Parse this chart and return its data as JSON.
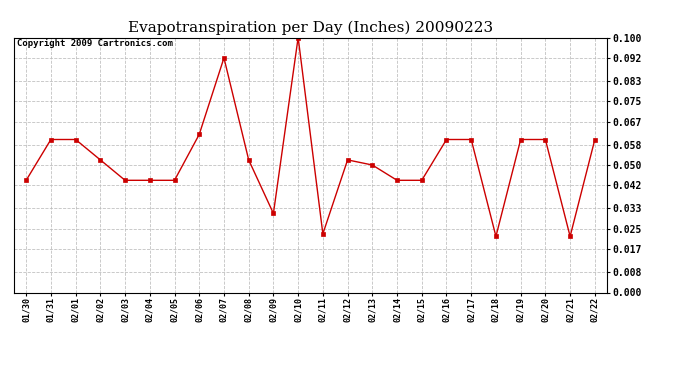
{
  "title": "Evapotranspiration per Day (Inches) 20090223",
  "copyright_text": "Copyright 2009 Cartronics.com",
  "dates": [
    "01/30",
    "01/31",
    "02/01",
    "02/02",
    "02/03",
    "02/04",
    "02/05",
    "02/06",
    "02/07",
    "02/08",
    "02/09",
    "02/10",
    "02/11",
    "02/12",
    "02/13",
    "02/14",
    "02/15",
    "02/16",
    "02/17",
    "02/18",
    "02/19",
    "02/20",
    "02/21",
    "02/22"
  ],
  "values": [
    0.044,
    0.06,
    0.06,
    0.052,
    0.044,
    0.044,
    0.044,
    0.062,
    0.092,
    0.052,
    0.031,
    0.1,
    0.023,
    0.052,
    0.05,
    0.044,
    0.044,
    0.06,
    0.06,
    0.022,
    0.06,
    0.06,
    0.022,
    0.06
  ],
  "line_color": "#cc0000",
  "marker": "s",
  "marker_size": 2.5,
  "background_color": "#ffffff",
  "plot_bg_color": "#ffffff",
  "grid_color": "#bbbbbb",
  "ylim": [
    0.0,
    0.1
  ],
  "yticks": [
    0.0,
    0.008,
    0.017,
    0.025,
    0.033,
    0.042,
    0.05,
    0.058,
    0.067,
    0.075,
    0.083,
    0.092,
    0.1
  ],
  "title_fontsize": 11,
  "copyright_fontsize": 6.5
}
